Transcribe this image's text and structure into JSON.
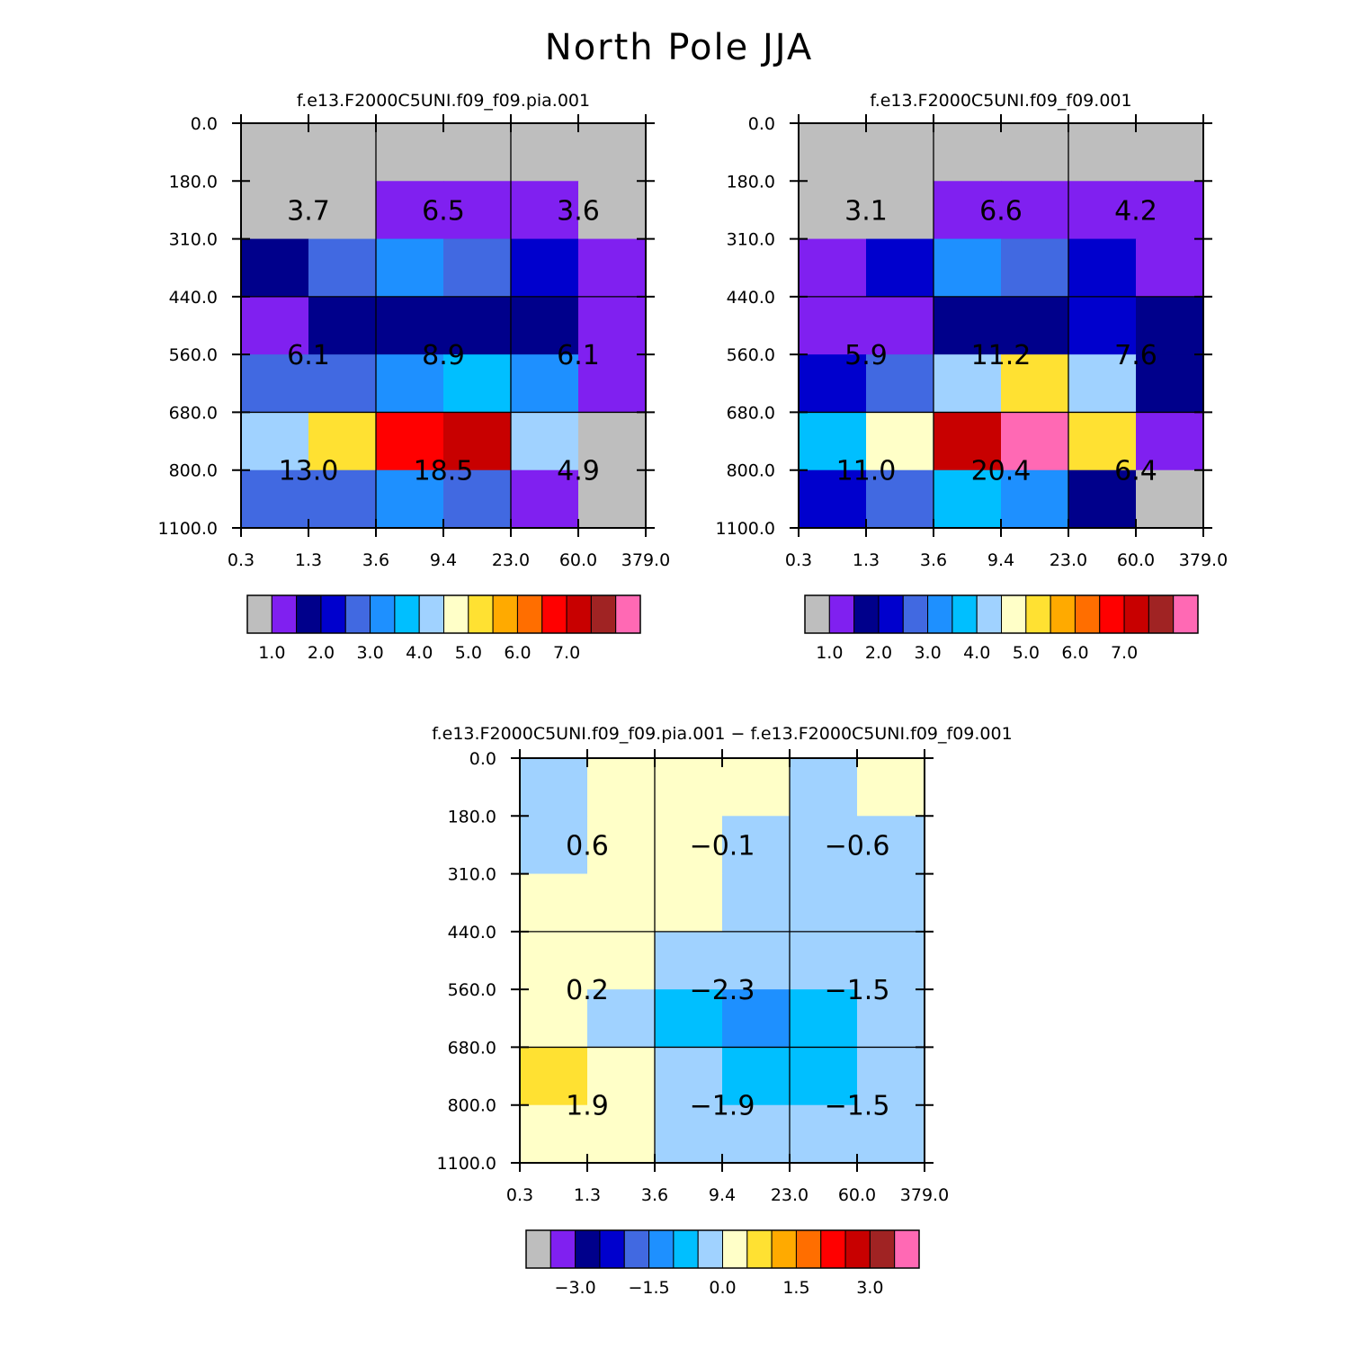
{
  "figure_title": "North Pole JJA",
  "colors": [
    "#bebebe",
    "#8020f0",
    "#00008b",
    "#0000cd",
    "#4169e1",
    "#1e90ff",
    "#00bfff",
    "#a0d2ff",
    "#ffffc8",
    "#ffe132",
    "#ffaa00",
    "#ff6e00",
    "#ff0000",
    "#c80000",
    "#a02323",
    "#ff69b4"
  ],
  "chart_data": [
    {
      "type": "heatmap",
      "title": "f.e13.F2000C5UNI.f09_f09.pia.001",
      "x_ticks": [
        "0.3",
        "1.3",
        "3.6",
        "9.4",
        "23.0",
        "60.0",
        "379.0"
      ],
      "y_ticks": [
        "0.0",
        "180.0",
        "310.0",
        "440.0",
        "560.0",
        "680.0",
        "800.0",
        "1100.0"
      ],
      "cells": [
        [
          0,
          0,
          0,
          0,
          0,
          0
        ],
        [
          0,
          0,
          1,
          1,
          1,
          0
        ],
        [
          2,
          4,
          5,
          4,
          3,
          1
        ],
        [
          1,
          2,
          2,
          2,
          2,
          1
        ],
        [
          4,
          4,
          5,
          6,
          5,
          1
        ],
        [
          7,
          9,
          12,
          13,
          7,
          0
        ],
        [
          4,
          4,
          5,
          4,
          1,
          0
        ]
      ],
      "box_values": [
        [
          "3.7",
          "6.5",
          "3.6"
        ],
        [
          "6.1",
          "8.9",
          "6.1"
        ],
        [
          "13.0",
          "18.5",
          "4.9"
        ]
      ],
      "colorbar_labels": [
        "1.0",
        "2.0",
        "3.0",
        "4.0",
        "5.0",
        "6.0",
        "7.0"
      ]
    },
    {
      "type": "heatmap",
      "title": "f.e13.F2000C5UNI.f09_f09.001",
      "x_ticks": [
        "0.3",
        "1.3",
        "3.6",
        "9.4",
        "23.0",
        "60.0",
        "379.0"
      ],
      "y_ticks": [
        "0.0",
        "180.0",
        "310.0",
        "440.0",
        "560.0",
        "680.0",
        "800.0",
        "1100.0"
      ],
      "cells": [
        [
          0,
          0,
          0,
          0,
          0,
          0
        ],
        [
          0,
          0,
          1,
          1,
          1,
          1
        ],
        [
          1,
          3,
          5,
          4,
          3,
          1
        ],
        [
          1,
          1,
          2,
          2,
          3,
          2
        ],
        [
          3,
          4,
          7,
          9,
          7,
          2
        ],
        [
          6,
          8,
          13,
          15,
          9,
          1
        ],
        [
          3,
          4,
          6,
          5,
          2,
          0
        ]
      ],
      "box_values": [
        [
          "3.1",
          "6.6",
          "4.2"
        ],
        [
          "5.9",
          "11.2",
          "7.6"
        ],
        [
          "11.0",
          "20.4",
          "6.4"
        ]
      ],
      "colorbar_labels": [
        "1.0",
        "2.0",
        "3.0",
        "4.0",
        "5.0",
        "6.0",
        "7.0"
      ]
    },
    {
      "type": "heatmap",
      "title": "f.e13.F2000C5UNI.f09_f09.pia.001 − f.e13.F2000C5UNI.f09_f09.001",
      "x_ticks": [
        "0.3",
        "1.3",
        "3.6",
        "9.4",
        "23.0",
        "60.0",
        "379.0"
      ],
      "y_ticks": [
        "0.0",
        "180.0",
        "310.0",
        "440.0",
        "560.0",
        "680.0",
        "800.0",
        "1100.0"
      ],
      "cells": [
        [
          7,
          8,
          8,
          8,
          7,
          8
        ],
        [
          7,
          8,
          8,
          7,
          7,
          7
        ],
        [
          8,
          8,
          8,
          7,
          7,
          7
        ],
        [
          8,
          8,
          7,
          7,
          7,
          7
        ],
        [
          8,
          7,
          6,
          5,
          6,
          7
        ],
        [
          9,
          8,
          7,
          6,
          6,
          7
        ],
        [
          8,
          8,
          7,
          7,
          7,
          7
        ]
      ],
      "box_values": [
        [
          "0.6",
          "−0.1",
          "−0.6"
        ],
        [
          "0.2",
          "−2.3",
          "−1.5"
        ],
        [
          "1.9",
          "−1.9",
          "−1.5"
        ]
      ],
      "colorbar_labels": [
        "−3.0",
        "−1.5",
        "0.0",
        "1.5",
        "3.0"
      ]
    }
  ]
}
